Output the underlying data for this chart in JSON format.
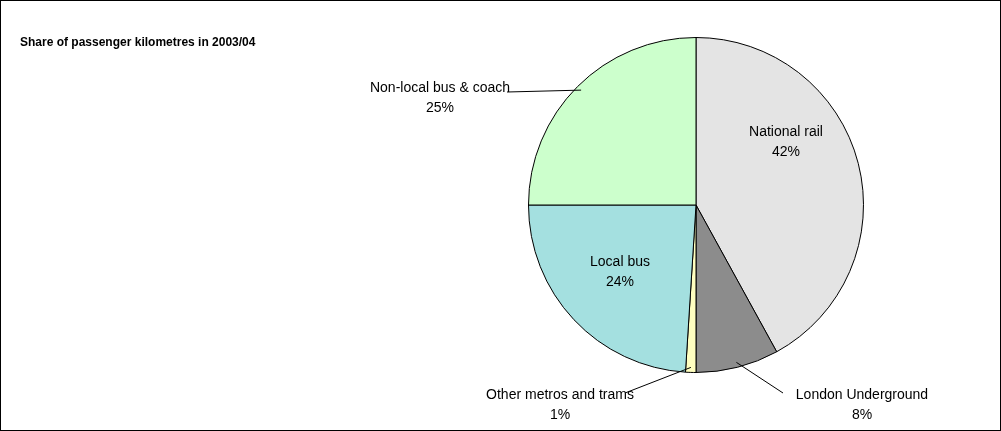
{
  "chart_data": {
    "type": "pie",
    "title": "Share of passenger kilometres in 2003/04",
    "categories": [
      "National rail",
      "London Underground",
      "Other metros and trams",
      "Local bus",
      "Non-local bus & coach"
    ],
    "values": [
      42,
      8,
      1,
      24,
      25
    ],
    "value_labels": [
      "42%",
      "8%",
      "1%",
      "24%",
      "25%"
    ],
    "colors": [
      "#e4e4e4",
      "#8c8c8c",
      "#ffffc0",
      "#a4e0e0",
      "#ccffcc"
    ],
    "legend": false
  }
}
